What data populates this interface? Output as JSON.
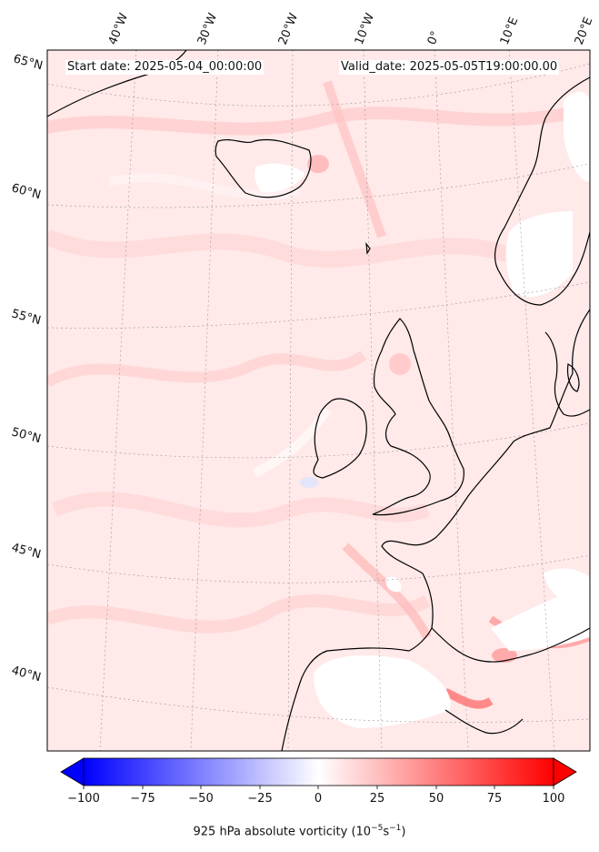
{
  "header": {
    "start": "Start date: 2025-05-04_00:00:00",
    "valid": "Valid_date: 2025-05-05T19:00:00.00"
  },
  "lon_labels": [
    "40°W",
    "30°W",
    "20°W",
    "10°W",
    "0°",
    "10°E",
    "20°E"
  ],
  "lat_labels": [
    "65°N",
    "60°N",
    "55°N",
    "50°N",
    "45°N",
    "40°N"
  ],
  "colorbar": {
    "ticks": [
      "−100",
      "−75",
      "−50",
      "−25",
      "0",
      "25",
      "50",
      "75",
      "100"
    ],
    "label_main": "925 hPa absolute vorticity (10",
    "label_exp1": "−5",
    "label_mid": "s",
    "label_exp2": "−1",
    "label_end": ")",
    "min": -100,
    "max": 100,
    "negative_color": "#0000ff",
    "positive_color": "#ff0000"
  },
  "map": {
    "background_color": "#ffe9e9",
    "coast_color": "#000000"
  }
}
